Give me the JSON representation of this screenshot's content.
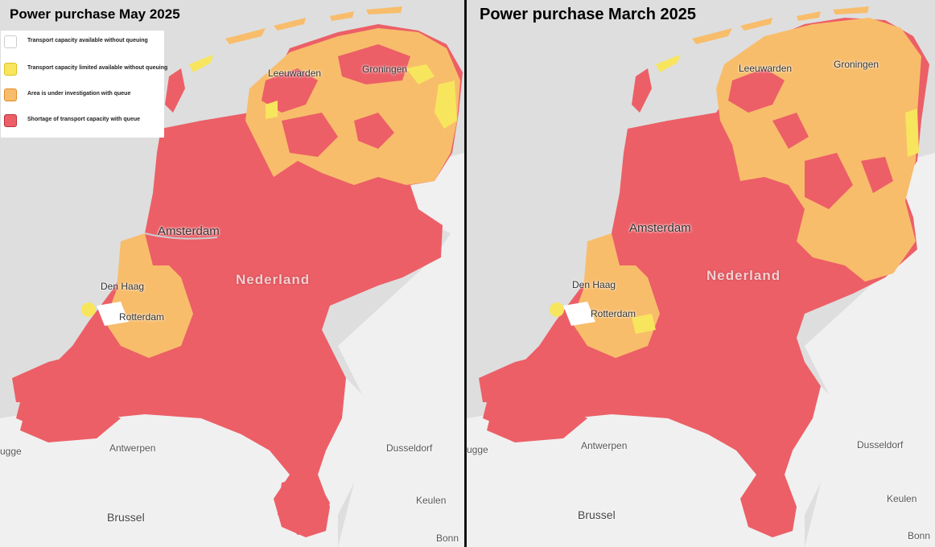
{
  "colors": {
    "available": "#ffffff",
    "limited": "#f7e55e",
    "investigation": "#f8bd6b",
    "shortage": "#ec5f67",
    "water": "#dedede",
    "land_outside": "#f0f0f0"
  },
  "left": {
    "title": "Power purchase May 2025",
    "legend": [
      {
        "label": "Transport capacity available without queuing",
        "color": "#ffffff",
        "border": "#cccccc"
      },
      {
        "label": "Transport capacity limited available without queuing",
        "color": "#f7e55e",
        "border": "#e0c020"
      },
      {
        "label": "Area is under investigation with queue",
        "color": "#f8bd6b",
        "border": "#e08a2a"
      },
      {
        "label": "Shortage of transport capacity with queue",
        "color": "#ec5f67",
        "border": "#b8303a"
      }
    ]
  },
  "right": {
    "title": "Power purchase March 2025"
  },
  "places": {
    "groningen": "Groningen",
    "leeuwarden": "Leeuwarden",
    "amsterdam": "Amsterdam",
    "den_haag": "Den Haag",
    "rotterdam": "Rotterdam",
    "nederland": "Nederland",
    "antwerpen": "Antwerpen",
    "dusseldorf": "Dusseldorf",
    "keulen": "Keulen",
    "brussel": "Brussel",
    "bonn": "Bonn",
    "brugge_partial": "ugge"
  }
}
